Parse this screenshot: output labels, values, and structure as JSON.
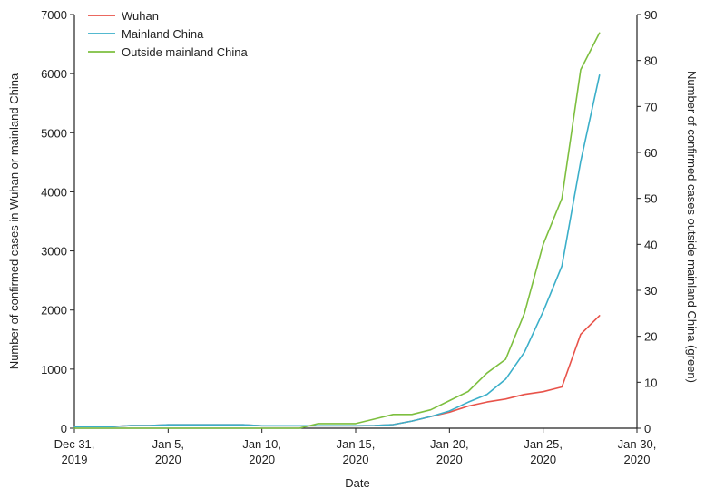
{
  "chart_data": {
    "type": "line",
    "xlabel": "Date",
    "ylabel_left": "Number of confirmed cases in Wuhan or mainland China",
    "ylabel_right": "Number of confirmed cases outside mainland China (green)",
    "ylim_left": [
      0,
      7000
    ],
    "ylim_right": [
      0,
      90
    ],
    "xlim": [
      "2019-12-31",
      "2020-01-30"
    ],
    "grid": false,
    "legend_position": "top-left",
    "yticks_left": [
      "0",
      "1000",
      "2000",
      "3000",
      "4000",
      "5000",
      "6000",
      "7000"
    ],
    "yticks_right": [
      "0",
      "10",
      "20",
      "30",
      "40",
      "50",
      "60",
      "70",
      "80",
      "90"
    ],
    "xticks": [
      {
        "date": "2019-12-31",
        "line1": "Dec 31,",
        "line2": "2019"
      },
      {
        "date": "2020-01-05",
        "line1": "Jan 5,",
        "line2": "2020"
      },
      {
        "date": "2020-01-10",
        "line1": "Jan 10,",
        "line2": "2020"
      },
      {
        "date": "2020-01-15",
        "line1": "Jan 15,",
        "line2": "2020"
      },
      {
        "date": "2020-01-20",
        "line1": "Jan 20,",
        "line2": "2020"
      },
      {
        "date": "2020-01-25",
        "line1": "Jan 25,",
        "line2": "2020"
      },
      {
        "date": "2020-01-30",
        "line1": "Jan 30,",
        "line2": "2020"
      }
    ],
    "series": [
      {
        "name": "Wuhan",
        "color": "#e8534a",
        "axis": "left",
        "points": [
          {
            "x": "2019-12-31",
            "y": 27
          },
          {
            "x": "2020-01-01",
            "y": 27
          },
          {
            "x": "2020-01-02",
            "y": 27
          },
          {
            "x": "2020-01-03",
            "y": 44
          },
          {
            "x": "2020-01-04",
            "y": 44
          },
          {
            "x": "2020-01-05",
            "y": 59
          },
          {
            "x": "2020-01-06",
            "y": 59
          },
          {
            "x": "2020-01-07",
            "y": 59
          },
          {
            "x": "2020-01-08",
            "y": 59
          },
          {
            "x": "2020-01-09",
            "y": 59
          },
          {
            "x": "2020-01-10",
            "y": 41
          },
          {
            "x": "2020-01-11",
            "y": 41
          },
          {
            "x": "2020-01-12",
            "y": 41
          },
          {
            "x": "2020-01-13",
            "y": 41
          },
          {
            "x": "2020-01-14",
            "y": 41
          },
          {
            "x": "2020-01-15",
            "y": 41
          },
          {
            "x": "2020-01-16",
            "y": 45
          },
          {
            "x": "2020-01-17",
            "y": 62
          },
          {
            "x": "2020-01-18",
            "y": 121
          },
          {
            "x": "2020-01-19",
            "y": 198
          },
          {
            "x": "2020-01-20",
            "y": 270
          },
          {
            "x": "2020-01-21",
            "y": 375
          },
          {
            "x": "2020-01-22",
            "y": 444
          },
          {
            "x": "2020-01-23",
            "y": 495
          },
          {
            "x": "2020-01-24",
            "y": 572
          },
          {
            "x": "2020-01-25",
            "y": 618
          },
          {
            "x": "2020-01-26",
            "y": 698
          },
          {
            "x": "2020-01-27",
            "y": 1590
          },
          {
            "x": "2020-01-28",
            "y": 1905
          }
        ]
      },
      {
        "name": "Mainland China",
        "color": "#3bafc9",
        "axis": "left",
        "points": [
          {
            "x": "2019-12-31",
            "y": 27
          },
          {
            "x": "2020-01-01",
            "y": 27
          },
          {
            "x": "2020-01-02",
            "y": 27
          },
          {
            "x": "2020-01-03",
            "y": 44
          },
          {
            "x": "2020-01-04",
            "y": 44
          },
          {
            "x": "2020-01-05",
            "y": 59
          },
          {
            "x": "2020-01-06",
            "y": 59
          },
          {
            "x": "2020-01-07",
            "y": 59
          },
          {
            "x": "2020-01-08",
            "y": 59
          },
          {
            "x": "2020-01-09",
            "y": 59
          },
          {
            "x": "2020-01-10",
            "y": 41
          },
          {
            "x": "2020-01-11",
            "y": 41
          },
          {
            "x": "2020-01-12",
            "y": 41
          },
          {
            "x": "2020-01-13",
            "y": 41
          },
          {
            "x": "2020-01-14",
            "y": 41
          },
          {
            "x": "2020-01-15",
            "y": 41
          },
          {
            "x": "2020-01-16",
            "y": 45
          },
          {
            "x": "2020-01-17",
            "y": 62
          },
          {
            "x": "2020-01-18",
            "y": 121
          },
          {
            "x": "2020-01-19",
            "y": 198
          },
          {
            "x": "2020-01-20",
            "y": 291
          },
          {
            "x": "2020-01-21",
            "y": 440
          },
          {
            "x": "2020-01-22",
            "y": 571
          },
          {
            "x": "2020-01-23",
            "y": 830
          },
          {
            "x": "2020-01-24",
            "y": 1287
          },
          {
            "x": "2020-01-25",
            "y": 1975
          },
          {
            "x": "2020-01-26",
            "y": 2744
          },
          {
            "x": "2020-01-27",
            "y": 4515
          },
          {
            "x": "2020-01-28",
            "y": 5974
          }
        ]
      },
      {
        "name": "Outside mainland China",
        "color": "#7dbf3f",
        "axis": "right",
        "points": [
          {
            "x": "2019-12-31",
            "y": 0
          },
          {
            "x": "2020-01-01",
            "y": 0
          },
          {
            "x": "2020-01-02",
            "y": 0
          },
          {
            "x": "2020-01-03",
            "y": 0
          },
          {
            "x": "2020-01-04",
            "y": 0
          },
          {
            "x": "2020-01-05",
            "y": 0
          },
          {
            "x": "2020-01-06",
            "y": 0
          },
          {
            "x": "2020-01-07",
            "y": 0
          },
          {
            "x": "2020-01-08",
            "y": 0
          },
          {
            "x": "2020-01-09",
            "y": 0
          },
          {
            "x": "2020-01-10",
            "y": 0
          },
          {
            "x": "2020-01-11",
            "y": 0
          },
          {
            "x": "2020-01-12",
            "y": 0
          },
          {
            "x": "2020-01-13",
            "y": 1
          },
          {
            "x": "2020-01-14",
            "y": 1
          },
          {
            "x": "2020-01-15",
            "y": 1
          },
          {
            "x": "2020-01-16",
            "y": 2
          },
          {
            "x": "2020-01-17",
            "y": 3
          },
          {
            "x": "2020-01-18",
            "y": 3
          },
          {
            "x": "2020-01-19",
            "y": 4
          },
          {
            "x": "2020-01-20",
            "y": 6
          },
          {
            "x": "2020-01-21",
            "y": 8
          },
          {
            "x": "2020-01-22",
            "y": 12
          },
          {
            "x": "2020-01-23",
            "y": 15
          },
          {
            "x": "2020-01-24",
            "y": 25
          },
          {
            "x": "2020-01-25",
            "y": 40
          },
          {
            "x": "2020-01-26",
            "y": 50
          },
          {
            "x": "2020-01-27",
            "y": 78
          },
          {
            "x": "2020-01-28",
            "y": 86
          }
        ]
      }
    ]
  }
}
